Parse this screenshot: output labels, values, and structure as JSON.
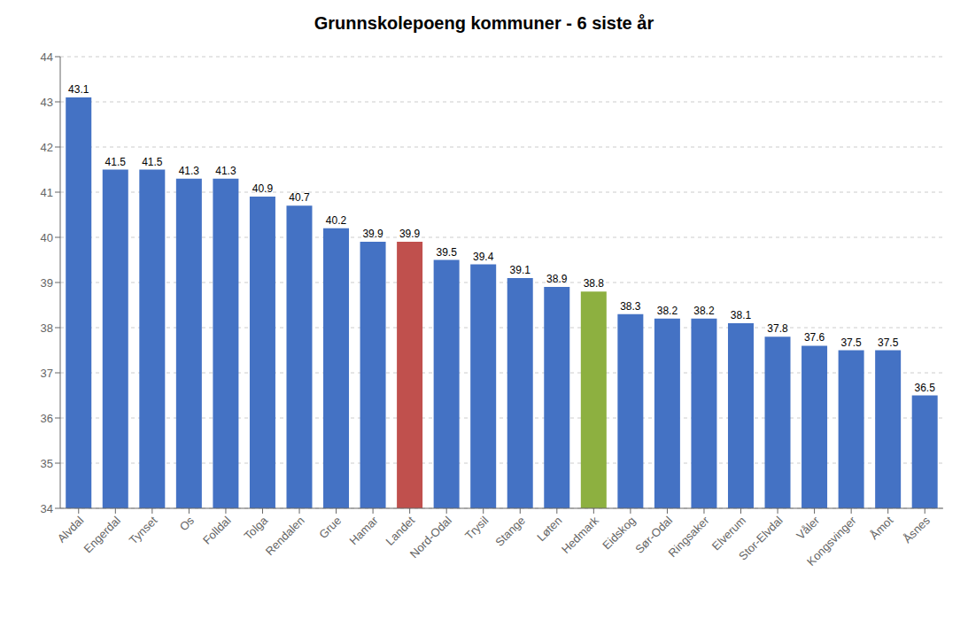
{
  "chart_data": {
    "type": "bar",
    "title": "Grunnskolepoeng kommuner - 6 siste år",
    "categories": [
      "Alvdal",
      "Engerdal",
      "Tynset",
      "Os",
      "Folldal",
      "Tolga",
      "Rendalen",
      "Grue",
      "Hamar",
      "Landet",
      "Nord-Odal",
      "Trysil",
      "Stange",
      "Løten",
      "Hedmark",
      "Eidskog",
      "Sør-Odal",
      "Ringsaker",
      "Elverum",
      "Stor-Elvdal",
      "Våler",
      "Kongsvinger",
      "Åmot",
      "Åsnes"
    ],
    "values": [
      43.1,
      41.5,
      41.5,
      41.3,
      41.3,
      40.9,
      40.7,
      40.2,
      39.9,
      39.9,
      39.5,
      39.4,
      39.1,
      38.9,
      38.8,
      38.3,
      38.2,
      38.2,
      38.1,
      37.8,
      37.6,
      37.5,
      37.5,
      36.5
    ],
    "colors": [
      "#4472C4",
      "#4472C4",
      "#4472C4",
      "#4472C4",
      "#4472C4",
      "#4472C4",
      "#4472C4",
      "#4472C4",
      "#4472C4",
      "#C0504D",
      "#4472C4",
      "#4472C4",
      "#4472C4",
      "#4472C4",
      "#8DB040",
      "#4472C4",
      "#4472C4",
      "#4472C4",
      "#4472C4",
      "#4472C4",
      "#4472C4",
      "#4472C4",
      "#4472C4",
      "#4472C4"
    ],
    "ylim": [
      34,
      44
    ],
    "yticks": [
      34,
      35,
      36,
      37,
      38,
      39,
      40,
      41,
      42,
      43,
      44
    ],
    "grid": true,
    "data_labels": true
  }
}
